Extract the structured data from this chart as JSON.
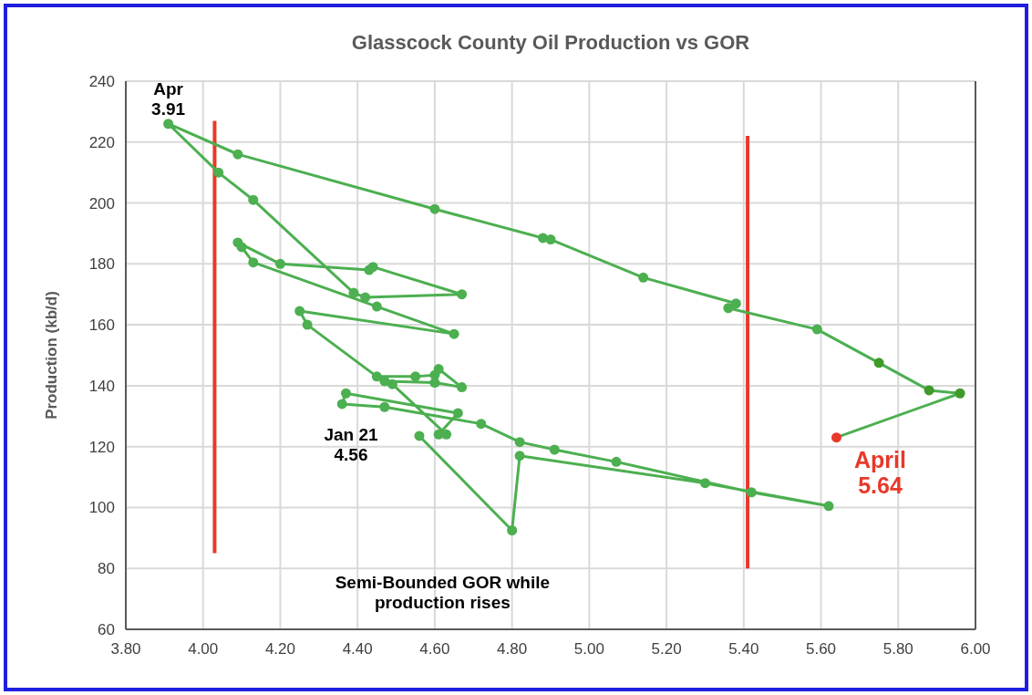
{
  "chart_data": {
    "type": "line",
    "title": "Glasscock County Oil Production vs GOR",
    "ylabel": "Production (kb/d)",
    "xlim": [
      3.8,
      6.0
    ],
    "xticks": [
      {
        "value": 3.8,
        "label": "3.80"
      },
      {
        "value": 4.0,
        "label": "4.00"
      },
      {
        "value": 4.2,
        "label": "4.20"
      },
      {
        "value": 4.4,
        "label": "4.40"
      },
      {
        "value": 4.6,
        "label": "4.60"
      },
      {
        "value": 4.8,
        "label": "4.80"
      },
      {
        "value": 5.0,
        "label": "5.00"
      },
      {
        "value": 5.2,
        "label": "5.20"
      },
      {
        "value": 5.4,
        "label": "5.40"
      },
      {
        "value": 5.6,
        "label": "5.60"
      },
      {
        "value": 5.8,
        "label": "5.80"
      },
      {
        "value": 6.0,
        "label": "6.00"
      }
    ],
    "ylim": [
      60,
      240
    ],
    "yticks": [
      60,
      80,
      100,
      120,
      140,
      160,
      180,
      200,
      220,
      240
    ],
    "grid": true,
    "marker": "circle",
    "series": [
      {
        "color": "#4caf50",
        "x": [
          4.56,
          4.8,
          4.82,
          5.3,
          5.62,
          5.42,
          5.07,
          4.91,
          4.82,
          4.72,
          4.47,
          4.36,
          4.37,
          4.66,
          4.61,
          4.63,
          4.49,
          4.47,
          4.6,
          4.67,
          4.61,
          4.6,
          4.55,
          4.45,
          4.27,
          4.25,
          4.65,
          4.45,
          4.13,
          4.1,
          4.09,
          4.2,
          4.43,
          4.44,
          4.67,
          4.42,
          4.39,
          4.13,
          4.04,
          3.91,
          4.09,
          4.6,
          4.88,
          4.9,
          5.14,
          5.38,
          5.36,
          5.59,
          5.75,
          5.88,
          5.96,
          5.64
        ],
        "values": [
          123.5,
          92.5,
          117,
          108,
          100.5,
          105,
          115,
          119,
          121.5,
          127.5,
          133,
          134,
          137.5,
          131,
          124,
          124,
          140.5,
          141.5,
          141,
          139.5,
          145.5,
          143.5,
          143,
          143,
          160,
          164.5,
          157,
          166,
          180.5,
          185.5,
          187,
          180,
          178,
          179,
          170,
          169,
          170.5,
          201,
          210,
          226,
          216,
          198,
          188.5,
          188,
          175.5,
          167,
          165.5,
          158.5,
          147.5,
          138.5,
          137.5,
          123
        ],
        "colors": [
          "#4caf50",
          "#4caf50",
          "#4caf50",
          "#4caf50",
          "#4caf50",
          "#4caf50",
          "#4caf50",
          "#4caf50",
          "#4caf50",
          "#4caf50",
          "#4caf50",
          "#4caf50",
          "#4caf50",
          "#4caf50",
          "#4caf50",
          "#4caf50",
          "#4caf50",
          "#4caf50",
          "#4caf50",
          "#4caf50",
          "#4caf50",
          "#4caf50",
          "#4caf50",
          "#4caf50",
          "#4caf50",
          "#4caf50",
          "#4caf50",
          "#4caf50",
          "#4caf50",
          "#4caf50",
          "#4caf50",
          "#4caf50",
          "#4caf50",
          "#4caf50",
          "#4caf50",
          "#4caf50",
          "#4caf50",
          "#4caf50",
          "#4caf50",
          "#4caf50",
          "#4caf50",
          "#4caf50",
          "#4caf50",
          "#4caf50",
          "#4caf50",
          "#4caf50",
          "#4caf50",
          "#4caf50",
          "#3f9a2a",
          "#3f9a2a",
          "#3f9a2a",
          "#e8392a"
        ]
      },
      {
        "color": "#e8392a",
        "marker": "none",
        "x": [
          4.03,
          4.03
        ],
        "values": [
          85,
          227
        ]
      },
      {
        "color": "#e8392a",
        "marker": "none",
        "x": [
          5.41,
          5.41
        ],
        "values": [
          80,
          222
        ]
      }
    ],
    "annotations": [
      {
        "text": "Apr\n3.91",
        "x": 3.91,
        "y": 226
      },
      {
        "text": "Jan 21\n4.56",
        "x": 4.56,
        "y": 123.5
      },
      {
        "text": "April\n5.64",
        "x": 5.64,
        "y": 123
      },
      "Semi-Bounded GOR while production rises"
    ]
  }
}
